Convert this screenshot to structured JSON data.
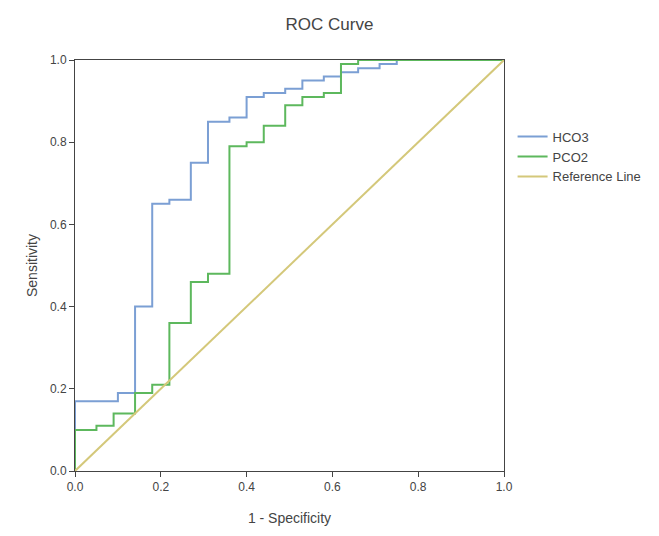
{
  "chart_data": {
    "type": "line",
    "title": "ROC Curve",
    "xlabel": "1 - Specificity",
    "ylabel": "Sensitivity",
    "xlim": [
      0.0,
      1.0
    ],
    "ylim": [
      0.0,
      1.0
    ],
    "xticks": [
      {
        "value": 0.0,
        "label": "0.0"
      },
      0.2,
      0.4,
      0.6,
      0.8,
      {
        "value": 1.0,
        "label": "1.0"
      }
    ],
    "yticks": [
      {
        "value": 0.0,
        "label": "0.0"
      },
      0.2,
      0.4,
      0.6,
      0.8,
      {
        "value": 1.0,
        "label": "1.0"
      }
    ],
    "grid": false,
    "legend": "right",
    "series": [
      {
        "name": "HCO3",
        "color": "#7b9fd4",
        "x": [
          0.0,
          0.0,
          0.0,
          0.1,
          0.1,
          0.14,
          0.14,
          0.18,
          0.18,
          0.22,
          0.22,
          0.27,
          0.27,
          0.31,
          0.31,
          0.36,
          0.36,
          0.4,
          0.4,
          0.44,
          0.44,
          0.49,
          0.49,
          0.53,
          0.53,
          0.58,
          0.58,
          0.62,
          0.62,
          0.66,
          0.66,
          0.71,
          0.71,
          0.75,
          0.75,
          0.79,
          0.79,
          1.0,
          1.0
        ],
        "values": [
          0.0,
          0.0,
          0.17,
          0.17,
          0.19,
          0.19,
          0.4,
          0.4,
          0.65,
          0.65,
          0.66,
          0.66,
          0.75,
          0.75,
          0.85,
          0.85,
          0.86,
          0.86,
          0.91,
          0.91,
          0.92,
          0.92,
          0.93,
          0.93,
          0.95,
          0.95,
          0.96,
          0.96,
          0.97,
          0.97,
          0.98,
          0.98,
          0.99,
          0.99,
          1.0,
          1.0,
          1.0,
          1.0,
          1.0
        ]
      },
      {
        "name": "PCO2",
        "color": "#5db85d",
        "x": [
          0.0,
          0.0,
          0.05,
          0.05,
          0.09,
          0.09,
          0.14,
          0.14,
          0.18,
          0.18,
          0.22,
          0.22,
          0.27,
          0.27,
          0.31,
          0.31,
          0.36,
          0.36,
          0.4,
          0.4,
          0.44,
          0.44,
          0.49,
          0.49,
          0.53,
          0.53,
          0.58,
          0.58,
          0.62,
          0.62,
          0.66,
          0.66,
          0.71,
          0.71,
          1.0,
          1.0
        ],
        "values": [
          0.0,
          0.1,
          0.1,
          0.11,
          0.11,
          0.14,
          0.14,
          0.19,
          0.19,
          0.21,
          0.21,
          0.36,
          0.36,
          0.46,
          0.46,
          0.48,
          0.48,
          0.79,
          0.79,
          0.8,
          0.8,
          0.84,
          0.84,
          0.89,
          0.89,
          0.91,
          0.91,
          0.92,
          0.92,
          0.99,
          0.99,
          1.0,
          1.0,
          1.0,
          1.0,
          1.0
        ]
      },
      {
        "name": "Reference Line",
        "color": "#d4c87a",
        "x": [
          0,
          1
        ],
        "values": [
          0,
          1
        ]
      }
    ]
  }
}
